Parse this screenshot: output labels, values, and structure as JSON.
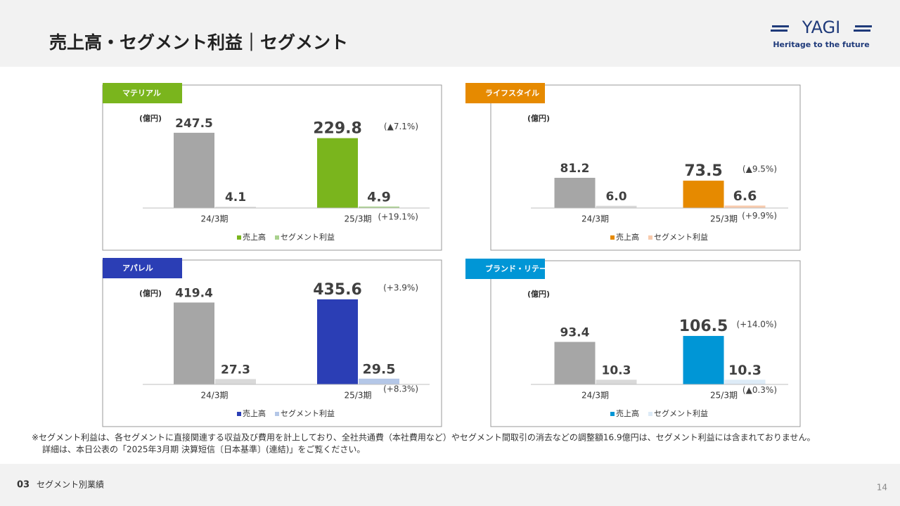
{
  "header": {
    "title": "売上高・セグメント利益｜セグメント",
    "logo": "YAGI",
    "tagline": "Heritage to the future"
  },
  "chart_data": [
    {
      "type": "bar",
      "title": "マテリアル",
      "title_color": "#7ab51d",
      "unit": "(億円)",
      "categories": [
        "24/3期",
        "25/3期"
      ],
      "ylim": [
        0,
        312
      ],
      "series": [
        {
          "name": "売上高",
          "color": "#7ab51d",
          "colors": [
            "#a6a6a6",
            "#7ab51d"
          ],
          "values": [
            247.5,
            229.8
          ],
          "value_labels": [
            "247.5",
            "229.8"
          ],
          "change": "(▲7.1%)"
        },
        {
          "name": "セグメント利益",
          "color": "#a9d18e",
          "colors": [
            "#d9d9d9",
            "#a9d18e"
          ],
          "values": [
            4.1,
            4.9
          ],
          "value_labels": [
            "4.1",
            "4.9"
          ],
          "change": "(+19.1%)"
        }
      ]
    },
    {
      "type": "bar",
      "title": "ライフスタイル",
      "title_color": "#e68a00",
      "unit": "(億円)",
      "categories": [
        "24/3期",
        "25/3期"
      ],
      "ylim": [
        0,
        255
      ],
      "series": [
        {
          "name": "売上高",
          "color": "#e68a00",
          "colors": [
            "#a6a6a6",
            "#e68a00"
          ],
          "values": [
            81.2,
            73.5
          ],
          "value_labels": [
            "81.2",
            "73.5"
          ],
          "change": "(▲9.5%)"
        },
        {
          "name": "セグメント利益",
          "color": "#f8cbad",
          "colors": [
            "#d9d9d9",
            "#f8cbad"
          ],
          "values": [
            6.0,
            6.6
          ],
          "value_labels": [
            "6.0",
            "6.6"
          ],
          "change": "(+9.9%)"
        }
      ]
    },
    {
      "type": "bar",
      "title": "アパレル",
      "title_color": "#2b3eb5",
      "unit": "(億円)",
      "categories": [
        "24/3期",
        "25/3期"
      ],
      "ylim": [
        0,
        493
      ],
      "series": [
        {
          "name": "売上高",
          "color": "#2b3eb5",
          "colors": [
            "#a6a6a6",
            "#2b3eb5"
          ],
          "values": [
            419.4,
            435.6
          ],
          "value_labels": [
            "419.4",
            "435.6"
          ],
          "change": "(+3.9%)"
        },
        {
          "name": "セグメント利益",
          "color": "#b4c7e7",
          "colors": [
            "#d9d9d9",
            "#b4c7e7"
          ],
          "values": [
            27.3,
            29.5
          ],
          "value_labels": [
            "27.3",
            "29.5"
          ],
          "change": "(+8.3%)"
        }
      ]
    },
    {
      "type": "bar",
      "title": "ブランド・リテール",
      "title_color": "#0096d6",
      "unit": "(億円)",
      "categories": [
        "24/3期",
        "25/3期"
      ],
      "ylim": [
        0,
        210
      ],
      "series": [
        {
          "name": "売上高",
          "color": "#0096d6",
          "colors": [
            "#a6a6a6",
            "#0096d6"
          ],
          "values": [
            93.4,
            106.5
          ],
          "value_labels": [
            "93.4",
            "106.5"
          ],
          "change": "(+14.0%)"
        },
        {
          "name": "セグメント利益",
          "color": "#ddebf7",
          "colors": [
            "#d9d9d9",
            "#ddebf7"
          ],
          "values": [
            10.3,
            10.3
          ],
          "value_labels": [
            "10.3",
            "10.3"
          ],
          "change": "(▲0.3%)"
        }
      ]
    }
  ],
  "footnote": [
    "※セグメント利益は、各セグメントに直接関連する収益及び費用を計上しており、全社共通費（本社費用など）やセグメント間取引の消去などの調整額16.9億円は、セグメント利益には含まれておりません。",
    "詳細は、本日公表の「2025年3月期 決算短信〔日本基準〕(連結)」をご覧ください。"
  ],
  "footer": {
    "section_no": "03",
    "section": "セグメント別業績",
    "page": "14"
  }
}
